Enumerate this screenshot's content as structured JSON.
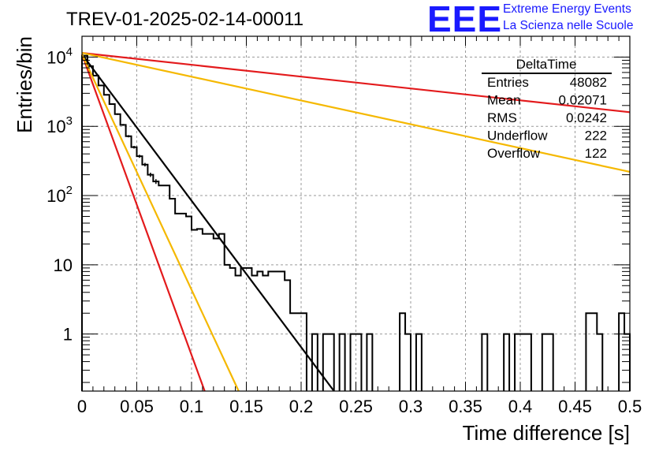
{
  "header": {
    "title": "TREV-01-2025-02-14-00011"
  },
  "logo": {
    "mark": "EEE",
    "line1": "Extreme Energy Events",
    "line2": "La Scienza nelle Scuole",
    "color": "#1a1aff"
  },
  "stats_box": {
    "name": "DeltaTime",
    "rows": [
      {
        "label": "Entries",
        "value": "48082"
      },
      {
        "label": "Mean",
        "value": "0.02071"
      },
      {
        "label": "RMS",
        "value": "0.0242"
      },
      {
        "label": "Underflow",
        "value": "222"
      },
      {
        "label": "Overflow",
        "value": "122"
      }
    ]
  },
  "chart_data": {
    "type": "line",
    "histogram_style": "step",
    "xlabel": "Time difference [s]",
    "ylabel": "Entries/bin",
    "xlim": [
      0,
      0.5
    ],
    "ylim": [
      0.15,
      20000
    ],
    "y_scale": "log",
    "grid": true,
    "x_ticks": [
      "0",
      "0.05",
      "0.1",
      "0.15",
      "0.2",
      "0.25",
      "0.3",
      "0.35",
      "0.4",
      "0.45",
      "0.5"
    ],
    "y_ticks": [
      {
        "value": 1,
        "label": "1"
      },
      {
        "value": 10,
        "label": "10"
      },
      {
        "value": 100,
        "base": "10",
        "exp": "2"
      },
      {
        "value": 1000,
        "base": "10",
        "exp": "3"
      },
      {
        "value": 10000,
        "base": "10",
        "exp": "4"
      }
    ],
    "bin_width": 0.005,
    "series": [
      {
        "kind": "histogram",
        "color": "#000000",
        "values": [
          10500,
          7400,
          5400,
          3900,
          2850,
          2100,
          1500,
          1050,
          720,
          500,
          370,
          280,
          200,
          160,
          140,
          140,
          90,
          55,
          55,
          50,
          32,
          33,
          28,
          28,
          24,
          28,
          10,
          9,
          7,
          9,
          9,
          7,
          8,
          7,
          8,
          8,
          8,
          6,
          2,
          2,
          2,
          0,
          1,
          0,
          1,
          1,
          0,
          1,
          0,
          1,
          1,
          0,
          1,
          0,
          0,
          0,
          0,
          0,
          2,
          1,
          0,
          1,
          0,
          0,
          0,
          0,
          0,
          0,
          0,
          0,
          0,
          0,
          0,
          1,
          0,
          0,
          0,
          1,
          0,
          1,
          1,
          1,
          0,
          0,
          1,
          1,
          0,
          0,
          0,
          0,
          0,
          0,
          2,
          2,
          1,
          0,
          0,
          0,
          2,
          1
        ]
      },
      {
        "kind": "fit",
        "color": "#000000",
        "x": [
          0,
          0.23
        ],
        "y": [
          11000,
          0.15
        ]
      },
      {
        "kind": "fit",
        "color": "#e31a1c",
        "x": [
          0,
          0.112
        ],
        "y": [
          11000,
          0.15
        ]
      },
      {
        "kind": "fit",
        "color": "#f5b800",
        "x": [
          0,
          0.143
        ],
        "y": [
          11000,
          0.15
        ]
      },
      {
        "kind": "fit",
        "color": "#e31a1c",
        "x": [
          0,
          0.5
        ],
        "y": [
          11500,
          1600
        ]
      },
      {
        "kind": "fit",
        "color": "#f5b800",
        "x": [
          0,
          0.5
        ],
        "y": [
          11500,
          220
        ]
      }
    ]
  }
}
